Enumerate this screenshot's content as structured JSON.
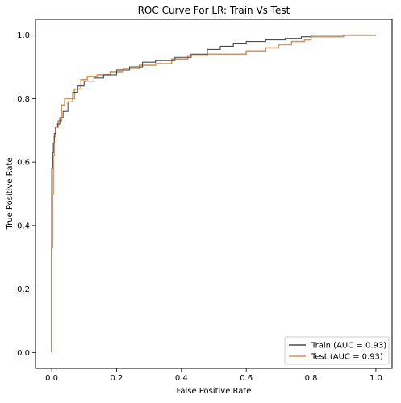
{
  "chart_data": {
    "type": "line",
    "title": "ROC Curve For LR: Train Vs Test",
    "xlabel": "False Positive Rate",
    "ylabel": "True Positive Rate",
    "xlim": [
      -0.05,
      1.05
    ],
    "ylim": [
      -0.05,
      1.05
    ],
    "xticks": [
      "0.0",
      "0.2",
      "0.4",
      "0.6",
      "0.8",
      "1.0"
    ],
    "yticks": [
      "0.0",
      "0.2",
      "0.4",
      "0.6",
      "0.8",
      "1.0"
    ],
    "grid": false,
    "legend_position": "lower-right",
    "series": [
      {
        "name": "Train (AUC = 0.93)",
        "color": "#4a4a4a",
        "step": true,
        "x": [
          0.0,
          0.0,
          0.003,
          0.005,
          0.008,
          0.012,
          0.018,
          0.025,
          0.035,
          0.05,
          0.065,
          0.08,
          0.1,
          0.13,
          0.16,
          0.2,
          0.24,
          0.28,
          0.32,
          0.38,
          0.43,
          0.48,
          0.52,
          0.56,
          0.6,
          0.66,
          0.72,
          0.77,
          0.8,
          0.85,
          0.9,
          0.95,
          1.0
        ],
        "y": [
          0.0,
          0.58,
          0.63,
          0.66,
          0.69,
          0.71,
          0.72,
          0.74,
          0.76,
          0.79,
          0.82,
          0.84,
          0.855,
          0.865,
          0.875,
          0.89,
          0.9,
          0.915,
          0.92,
          0.93,
          0.94,
          0.955,
          0.965,
          0.975,
          0.98,
          0.985,
          0.99,
          0.995,
          1.0,
          1.0,
          1.0,
          1.0,
          1.0
        ]
      },
      {
        "name": "Test (AUC = 0.93)",
        "color": "#d2955a",
        "step": true,
        "x": [
          0.0,
          0.0,
          0.003,
          0.005,
          0.008,
          0.012,
          0.02,
          0.03,
          0.04,
          0.055,
          0.07,
          0.09,
          0.11,
          0.14,
          0.18,
          0.22,
          0.27,
          0.32,
          0.37,
          0.42,
          0.48,
          0.54,
          0.6,
          0.66,
          0.7,
          0.74,
          0.78,
          0.8,
          0.84,
          0.9,
          0.95,
          1.0
        ],
        "y": [
          0.0,
          0.33,
          0.5,
          0.62,
          0.68,
          0.71,
          0.73,
          0.78,
          0.8,
          0.8,
          0.83,
          0.86,
          0.87,
          0.875,
          0.885,
          0.895,
          0.905,
          0.91,
          0.925,
          0.935,
          0.94,
          0.94,
          0.95,
          0.96,
          0.97,
          0.98,
          0.985,
          0.995,
          0.995,
          1.0,
          1.0,
          1.0
        ]
      }
    ]
  }
}
